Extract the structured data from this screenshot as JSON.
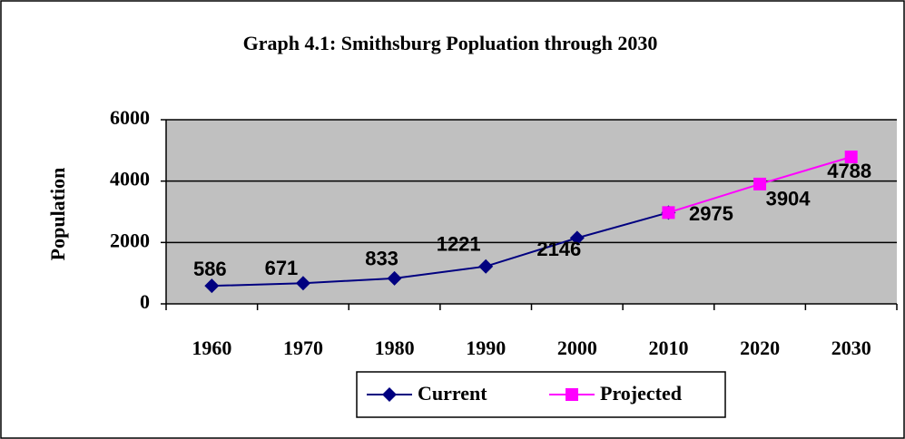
{
  "chart_data": {
    "type": "line",
    "title": "Graph 4.1: Smithsburg Popluation through 2030",
    "y_label": "Population",
    "categories": [
      "1960",
      "1970",
      "1980",
      "1990",
      "2000",
      "2010",
      "2020",
      "2030"
    ],
    "series": [
      {
        "name": "Current",
        "color": "#000080",
        "marker": "diamond",
        "values": [
          586,
          671,
          833,
          1221,
          2146,
          2975,
          null,
          null
        ]
      },
      {
        "name": "Projected",
        "color": "#ff00ff",
        "marker": "square",
        "values": [
          null,
          null,
          null,
          null,
          null,
          2975,
          3904,
          4788
        ]
      }
    ],
    "ylim": [
      0,
      6000
    ],
    "yticks": [
      0,
      2000,
      4000,
      6000
    ],
    "grid": true,
    "plot_background": "#c0c0c0",
    "legend": "bottom"
  }
}
